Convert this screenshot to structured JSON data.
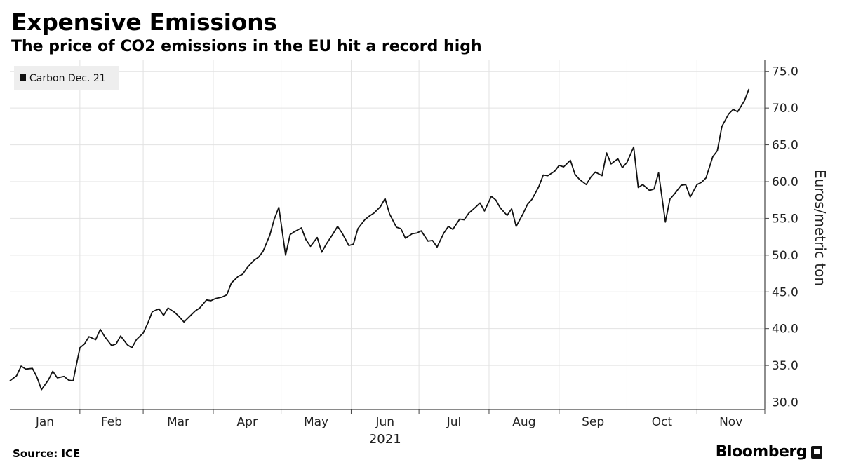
{
  "title": "Expensive Emissions",
  "subtitle": "The price of CO2 emissions in the EU hit a record high",
  "source": "Source: ICE",
  "brand": "Bloomberg",
  "brand_icon": "bloomberg-logo-icon",
  "chart_data": {
    "type": "line",
    "title": "Expensive Emissions",
    "subtitle": "The price of CO2 emissions in the EU hit a record high",
    "ylabel": "Euros/metric ton",
    "xlabel": "2021",
    "ylim": [
      29.0,
      76.5
    ],
    "y_ticks": [
      "30.0",
      "35.0",
      "40.0",
      "45.0",
      "50.0",
      "55.0",
      "60.0",
      "65.0",
      "70.0",
      "75.0"
    ],
    "x_ticks": [
      "Jan",
      "Feb",
      "Mar",
      "Apr",
      "May",
      "Jun",
      "Jul",
      "Aug",
      "Sep",
      "Oct",
      "Nov"
    ],
    "year_label": "2021",
    "grid": true,
    "legend_position": "top-left",
    "line_color": "#111111",
    "series": [
      {
        "name": "Carbon Dec. 21",
        "x": [
          "2021-01-01",
          "2021-01-04",
          "2021-01-06",
          "2021-01-08",
          "2021-01-11",
          "2021-01-13",
          "2021-01-15",
          "2021-01-18",
          "2021-01-20",
          "2021-01-22",
          "2021-01-25",
          "2021-01-27",
          "2021-01-29",
          "2021-02-01",
          "2021-02-03",
          "2021-02-05",
          "2021-02-08",
          "2021-02-10",
          "2021-02-12",
          "2021-02-15",
          "2021-02-17",
          "2021-02-19",
          "2021-02-22",
          "2021-02-24",
          "2021-02-26",
          "2021-03-01",
          "2021-03-03",
          "2021-03-05",
          "2021-03-08",
          "2021-03-10",
          "2021-03-12",
          "2021-03-15",
          "2021-03-17",
          "2021-03-19",
          "2021-03-22",
          "2021-03-24",
          "2021-03-26",
          "2021-03-29",
          "2021-03-31",
          "2021-04-02",
          "2021-04-05",
          "2021-04-07",
          "2021-04-09",
          "2021-04-12",
          "2021-04-14",
          "2021-04-16",
          "2021-04-19",
          "2021-04-21",
          "2021-04-23",
          "2021-04-26",
          "2021-04-28",
          "2021-04-30",
          "2021-05-03",
          "2021-05-05",
          "2021-05-07",
          "2021-05-10",
          "2021-05-12",
          "2021-05-14",
          "2021-05-17",
          "2021-05-19",
          "2021-05-21",
          "2021-05-24",
          "2021-05-26",
          "2021-05-28",
          "2021-05-31",
          "2021-06-02",
          "2021-06-04",
          "2021-06-07",
          "2021-06-09",
          "2021-06-11",
          "2021-06-14",
          "2021-06-16",
          "2021-06-18",
          "2021-06-21",
          "2021-06-23",
          "2021-06-25",
          "2021-06-28",
          "2021-06-30",
          "2021-07-02",
          "2021-07-05",
          "2021-07-07",
          "2021-07-09",
          "2021-07-12",
          "2021-07-14",
          "2021-07-16",
          "2021-07-19",
          "2021-07-21",
          "2021-07-23",
          "2021-07-26",
          "2021-07-28",
          "2021-07-30",
          "2021-08-02",
          "2021-08-04",
          "2021-08-06",
          "2021-08-09",
          "2021-08-11",
          "2021-08-13",
          "2021-08-16",
          "2021-08-18",
          "2021-08-20",
          "2021-08-23",
          "2021-08-25",
          "2021-08-27",
          "2021-08-30",
          "2021-09-01",
          "2021-09-03",
          "2021-09-06",
          "2021-09-08",
          "2021-09-10",
          "2021-09-13",
          "2021-09-15",
          "2021-09-17",
          "2021-09-20",
          "2021-09-22",
          "2021-09-24",
          "2021-09-27",
          "2021-09-29",
          "2021-10-01",
          "2021-10-04",
          "2021-10-06",
          "2021-10-08",
          "2021-10-11",
          "2021-10-13",
          "2021-10-15",
          "2021-10-18",
          "2021-10-20",
          "2021-10-22",
          "2021-10-25",
          "2021-10-27",
          "2021-10-29",
          "2021-11-01",
          "2021-11-03",
          "2021-11-05",
          "2021-11-08",
          "2021-11-10",
          "2021-11-12",
          "2021-11-15",
          "2021-11-17",
          "2021-11-19",
          "2021-11-22",
          "2021-11-24"
        ],
        "values": [
          32.9,
          33.6,
          34.9,
          34.5,
          34.6,
          33.4,
          31.7,
          33.0,
          34.2,
          33.3,
          33.5,
          33.0,
          32.9,
          37.4,
          37.9,
          38.9,
          38.5,
          39.9,
          38.9,
          37.7,
          37.9,
          39.0,
          37.8,
          37.4,
          38.5,
          39.4,
          40.7,
          42.3,
          42.7,
          41.8,
          42.8,
          42.2,
          41.6,
          40.9,
          41.8,
          42.4,
          42.8,
          43.9,
          43.8,
          44.1,
          44.3,
          44.6,
          46.2,
          47.1,
          47.4,
          48.3,
          49.3,
          49.7,
          50.5,
          52.7,
          54.9,
          56.5,
          50.0,
          52.8,
          53.2,
          53.7,
          52.1,
          51.2,
          52.4,
          50.4,
          51.5,
          52.9,
          53.9,
          53.0,
          51.3,
          51.5,
          53.6,
          54.8,
          55.3,
          55.7,
          56.6,
          57.7,
          55.6,
          53.8,
          53.6,
          52.3,
          52.9,
          53.0,
          53.3,
          51.9,
          52.0,
          51.1,
          53.0,
          53.9,
          53.5,
          54.9,
          54.8,
          55.7,
          56.5,
          57.1,
          56.0,
          58.0,
          57.5,
          56.4,
          55.4,
          56.3,
          53.9,
          55.6,
          56.9,
          57.6,
          59.3,
          60.9,
          60.8,
          61.4,
          62.2,
          62.0,
          62.9,
          61.0,
          60.3,
          59.6,
          60.6,
          61.3,
          60.8,
          63.9,
          62.4,
          63.1,
          61.9,
          62.6,
          64.7,
          59.2,
          59.6,
          58.8,
          59.0,
          61.2,
          54.5,
          57.6,
          58.3,
          59.5,
          59.6,
          57.9,
          59.6,
          59.9,
          60.5,
          63.4,
          64.2,
          67.5,
          69.2,
          69.8,
          69.5,
          71.0,
          72.6
        ]
      }
    ]
  }
}
